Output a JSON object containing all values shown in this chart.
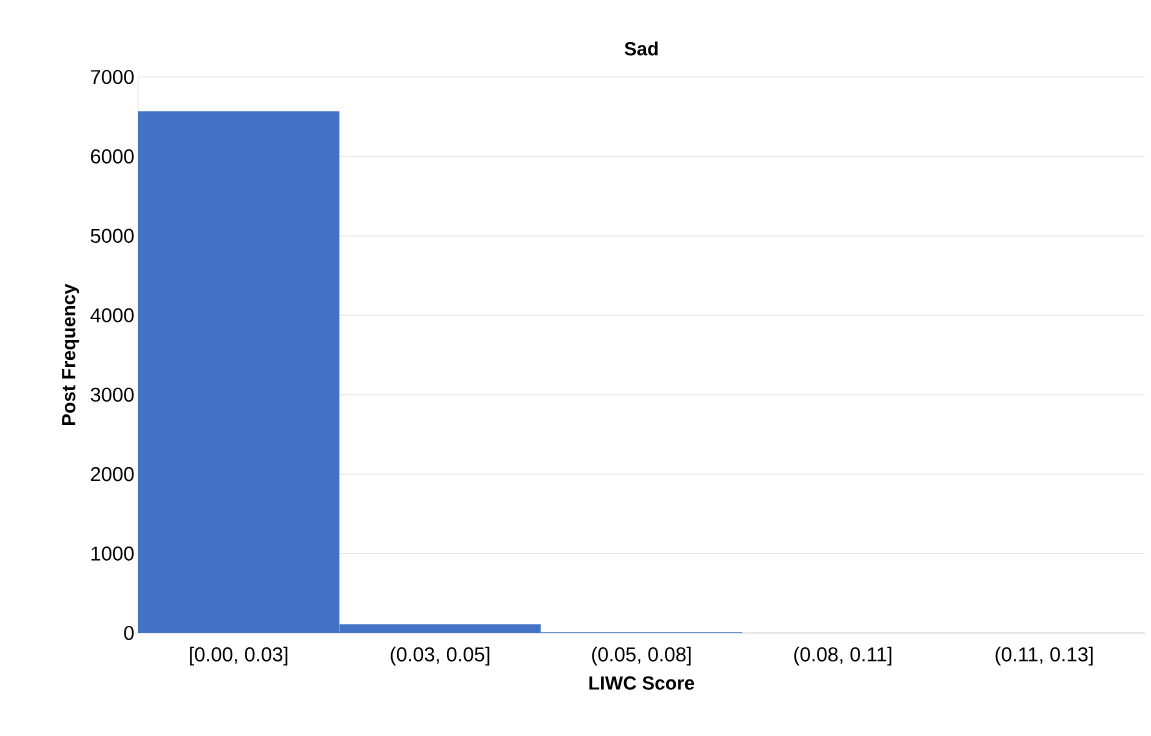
{
  "chart_data": {
    "type": "bar",
    "title": "Sad",
    "xlabel": "LIWC Score",
    "ylabel": "Post Frequency",
    "categories": [
      "[0.00, 0.03]",
      "(0.03, 0.05]",
      "(0.05, 0.08]",
      "(0.08, 0.11]",
      "(0.11, 0.13]"
    ],
    "values": [
      6570,
      110,
      10,
      0,
      0
    ],
    "color": "#4472c4",
    "ylim": [
      0,
      7000
    ],
    "yticks": [
      0,
      1000,
      2000,
      3000,
      4000,
      5000,
      6000,
      7000
    ],
    "grid": "y"
  }
}
